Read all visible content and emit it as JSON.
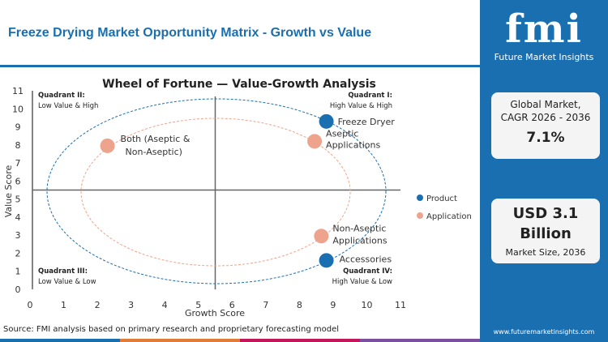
{
  "header": {
    "title": "Freeze Drying Market Opportunity Matrix - Growth vs Value"
  },
  "sidebar": {
    "logo_text": "fmi",
    "logo_sub": "Future Market Insights",
    "cagr_label_1": "Global Market,",
    "cagr_label_2": "CAGR 2026 - 2036",
    "cagr_value": "7.1%",
    "size_value_1": "USD 3.1",
    "size_value_2": "Billion",
    "size_label": "Market Size, 2036",
    "website": "www.futuremarketinsights.com"
  },
  "source": "Source: FMI analysis based on primary research and proprietary forecasting model",
  "colors": {
    "brand": "#1a6fb0",
    "product": "#1a6fb0",
    "application": "#eea48c"
  },
  "chart_data": {
    "type": "scatter",
    "title": "Wheel of Fortune — Value-Growth Analysis",
    "xlabel": "Growth Score",
    "ylabel": "Value Score",
    "xlim": [
      0,
      11
    ],
    "ylim": [
      0,
      11
    ],
    "xticks": [
      "0",
      "1",
      "2",
      "3",
      "4",
      "5",
      "6",
      "7",
      "8",
      "9",
      "10",
      "11"
    ],
    "yticks": [
      "0",
      "1",
      "2",
      "3",
      "4",
      "5",
      "6",
      "7",
      "8",
      "9",
      "10",
      "11"
    ],
    "divider": {
      "x": 5.5,
      "y": 5.5
    },
    "quadrants": [
      {
        "name": "Quadrant I:",
        "desc": "High Value & High"
      },
      {
        "name": "Quadrant II:",
        "desc": "Low Value & High"
      },
      {
        "name": "Quadrant III:",
        "desc": "Low Value & Low"
      },
      {
        "name": "Quadrant IV:",
        "desc": "High Value & Low"
      }
    ],
    "legend_position": "right",
    "series": [
      {
        "name": "Product",
        "points": [
          {
            "label": "Freeze Dryer",
            "x": 8.8,
            "y": 9.3
          },
          {
            "label": "Accessories",
            "x": 8.8,
            "y": 1.6
          }
        ]
      },
      {
        "name": "Application",
        "points": [
          {
            "label": "Aseptic Applications",
            "x": 8.45,
            "y": 8.2
          },
          {
            "label": "Both (Aseptic & Non-Aseptic)",
            "x": 2.3,
            "y": 7.95
          },
          {
            "label": "Non-Aseptic Applications",
            "x": 8.65,
            "y": 2.95
          }
        ]
      }
    ]
  }
}
